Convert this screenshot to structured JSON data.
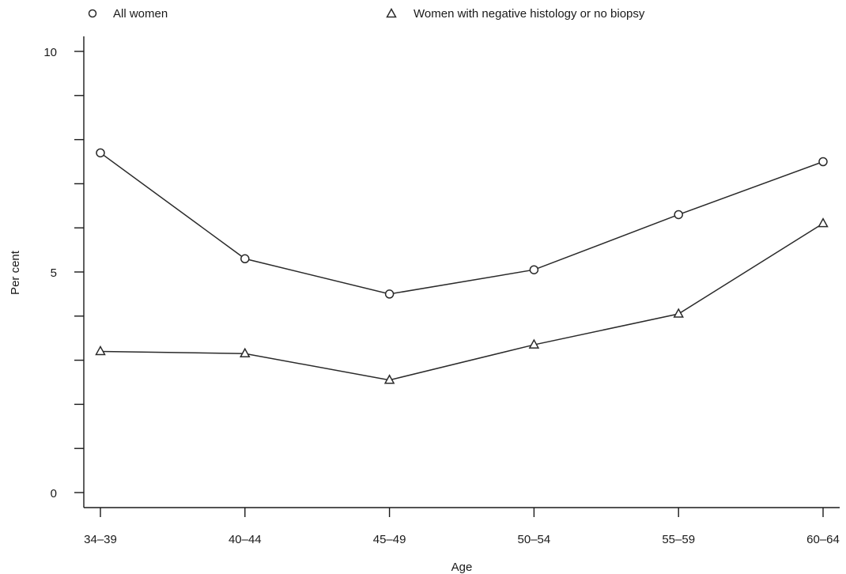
{
  "chart_data": {
    "type": "line",
    "title": "",
    "xlabel": "Age",
    "ylabel": "Per cent",
    "categories": [
      "34–39",
      "40–44",
      "45–49",
      "50–54",
      "55–59",
      "60–64"
    ],
    "ylim": [
      0,
      10
    ],
    "yticks": [
      0,
      5,
      10
    ],
    "yminor_ticks": [
      1,
      2,
      3,
      4,
      6,
      7,
      8,
      9
    ],
    "grid": false,
    "legend_position": "top",
    "series": [
      {
        "name": "All women",
        "marker": "circle",
        "values": [
          7.7,
          5.3,
          4.5,
          5.05,
          6.3,
          7.5
        ]
      },
      {
        "name": "Women with negative histology or no biopsy",
        "marker": "triangle",
        "values": [
          3.2,
          3.15,
          2.55,
          3.35,
          4.05,
          6.1
        ]
      }
    ]
  }
}
